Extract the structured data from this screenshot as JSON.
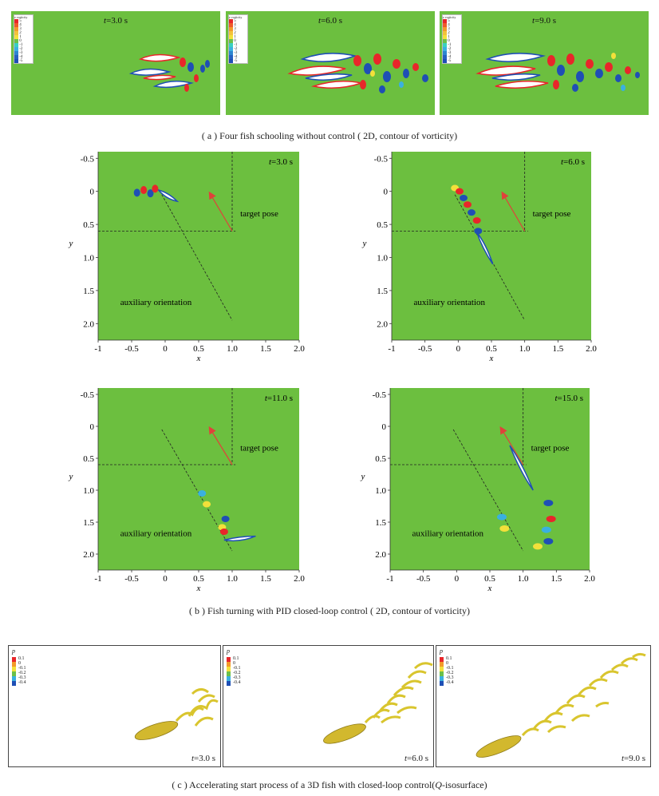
{
  "figure_a": {
    "caption": "( a )  Four fish schooling without control ( 2D,  contour of vorticity)",
    "colorbar_title": "z vorticity",
    "colorbar_ticks": [
      "5",
      "4",
      "3",
      "2",
      "1",
      "0",
      "-1",
      "-2",
      "-3",
      "-4",
      "-5"
    ],
    "panels": [
      {
        "time_var": "t",
        "time_val": "=3.0 s"
      },
      {
        "time_var": "t",
        "time_val": "=6.0 s"
      },
      {
        "time_var": "t",
        "time_val": "=9.0 s"
      }
    ]
  },
  "figure_b": {
    "caption": "( b )  Fish turning with PID closed-loop control ( 2D,  contour of vorticity)",
    "xlabel": "x",
    "ylabel": "y",
    "x_ticks": [
      "-1",
      "-0.5",
      "0",
      "0.5",
      "1.0",
      "1.5",
      "2.0"
    ],
    "y_ticks": [
      "-0.5",
      "0",
      "0.5",
      "1.0",
      "1.5",
      "2.0"
    ],
    "target_label": "target pose",
    "aux_label": "auxiliary orientation",
    "panels": [
      {
        "time_var": "t",
        "time_val": "=3.0 s"
      },
      {
        "time_var": "t",
        "time_val": "=6.0 s"
      },
      {
        "time_var": "t",
        "time_val": "=11.0 s"
      },
      {
        "time_var": "t",
        "time_val": "=15.0 s"
      }
    ]
  },
  "figure_c": {
    "caption_pre": "( c )  Accelerating start process of a 3D fish with closed-loop control(",
    "caption_var": "Q",
    "caption_post": "-isosurface)",
    "colorbar_title": "p",
    "colorbar_ticks": [
      "0.1",
      "0",
      "-0.1",
      "-0.2",
      "-0.3",
      "-0.4"
    ],
    "panels": [
      {
        "time_var": "t",
        "time_val": "=3.0 s"
      },
      {
        "time_var": "t",
        "time_val": "=6.0 s"
      },
      {
        "time_var": "t",
        "time_val": "=9.0 s"
      }
    ]
  },
  "colors": {
    "field": "#6cbf3f",
    "positive": "#e8262a",
    "negative": "#1f4fb5",
    "fish": "#ffffff",
    "arrow": "#e0423a",
    "isosurface": "#e8d23a"
  }
}
